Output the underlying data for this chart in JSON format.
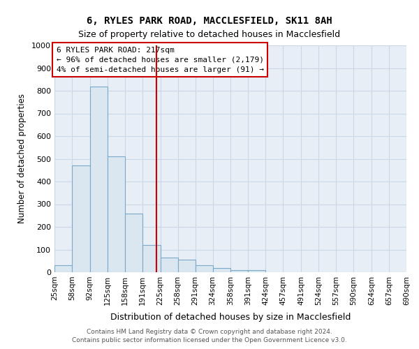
{
  "title1": "6, RYLES PARK ROAD, MACCLESFIELD, SK11 8AH",
  "title2": "Size of property relative to detached houses in Macclesfield",
  "xlabel": "Distribution of detached houses by size in Macclesfield",
  "ylabel": "Number of detached properties",
  "bin_labels": [
    "25sqm",
    "58sqm",
    "92sqm",
    "125sqm",
    "158sqm",
    "191sqm",
    "225sqm",
    "258sqm",
    "291sqm",
    "324sqm",
    "358sqm",
    "391sqm",
    "424sqm",
    "457sqm",
    "491sqm",
    "524sqm",
    "557sqm",
    "590sqm",
    "624sqm",
    "657sqm",
    "690sqm"
  ],
  "bin_edges": [
    25,
    58,
    92,
    125,
    158,
    191,
    225,
    258,
    291,
    324,
    358,
    391,
    424,
    457,
    491,
    524,
    557,
    590,
    624,
    657,
    690
  ],
  "bar_heights": [
    30,
    470,
    820,
    510,
    260,
    120,
    65,
    55,
    30,
    20,
    10,
    10,
    0,
    0,
    0,
    0,
    0,
    0,
    0,
    0
  ],
  "bar_color": "#dae6f0",
  "bar_edge_color": "#7aaac8",
  "property_size": 217,
  "red_line_color": "#cc0000",
  "annotation_text_line1": "6 RYLES PARK ROAD: 217sqm",
  "annotation_text_line2": "← 96% of detached houses are smaller (2,179)",
  "annotation_text_line3": "4% of semi-detached houses are larger (91) →",
  "annotation_box_color": "#ffffff",
  "annotation_box_edge": "#cc0000",
  "ylim": [
    0,
    1000
  ],
  "xlim_left": 25,
  "xlim_right": 690,
  "bg_color": "#e8eef5",
  "grid_color": "#c8d8e8",
  "footer_line1": "Contains HM Land Registry data © Crown copyright and database right 2024.",
  "footer_line2": "Contains public sector information licensed under the Open Government Licence v3.0."
}
